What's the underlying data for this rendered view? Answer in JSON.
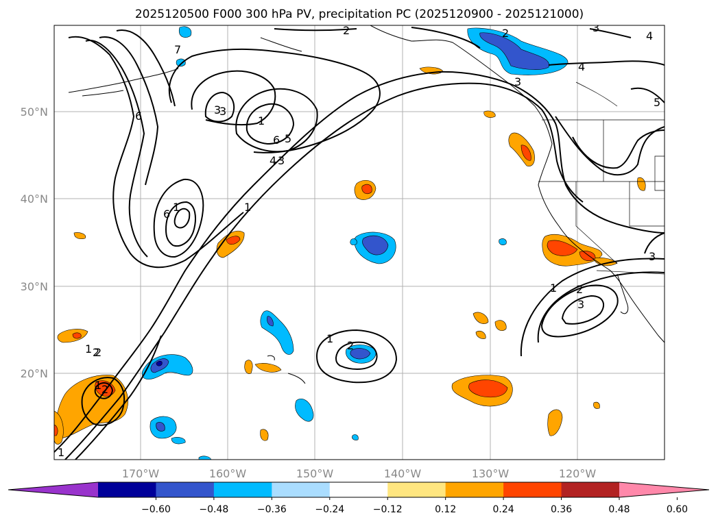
{
  "title": "2025120500 F000 300 hPa PV, precipitation PC (2025120900 - 2025121000)",
  "map": {
    "lon_labels": [
      "170°W",
      "160°W",
      "150°W",
      "140°W",
      "130°W",
      "120°W"
    ],
    "lat_labels": [
      "50°N",
      "40°N",
      "30°N",
      "20°N"
    ],
    "contour_labels": [
      "1",
      "2",
      "1",
      "2",
      "3",
      "4",
      "5",
      "6",
      "1",
      "1",
      "1",
      "2",
      "3",
      "1",
      "1",
      "2",
      "1",
      "2",
      "3",
      "3",
      "6",
      "6",
      "7",
      "2",
      "2",
      "3",
      "4",
      "5",
      "4",
      "3",
      "3"
    ]
  },
  "colorbar": {
    "tick_labels": [
      "−0.60",
      "−0.48",
      "−0.36",
      "−0.24",
      "−0.12",
      "0.12",
      "0.24",
      "0.36",
      "0.48",
      "0.60"
    ],
    "colors": [
      "#9933cc",
      "#000099",
      "#3355cc",
      "#00bbff",
      "#aaddff",
      "#ffffff",
      "#ffe680",
      "#ffa500",
      "#ff4500",
      "#b22222",
      "#ff88aa"
    ]
  },
  "chart_data": {
    "type": "map",
    "title": "2025120500 F000 300 hPa PV, precipitation PC (2025120900 - 2025121000)",
    "lon_range": [
      "180°W",
      "110°W"
    ],
    "lat_range": [
      "10°N",
      "60°N"
    ],
    "contour_field": "300 hPa PV",
    "shaded_field": "precipitation PC",
    "colorbar_levels": [
      -0.6,
      -0.48,
      -0.36,
      -0.24,
      -0.12,
      0.12,
      0.24,
      0.36,
      0.48,
      0.6
    ]
  }
}
